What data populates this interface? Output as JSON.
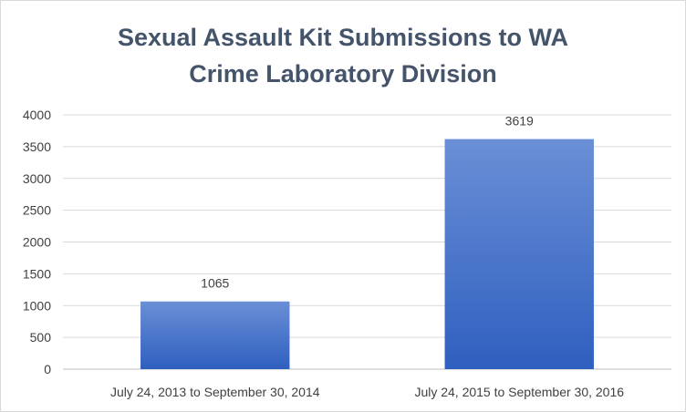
{
  "chart_data": {
    "type": "bar",
    "title_lines": [
      "Sexual Assault Kit Submissions to WA",
      "Crime Laboratory Division"
    ],
    "categories": [
      "July 24, 2013 to September 30, 2014",
      "July 24, 2015 to September 30, 2016"
    ],
    "series": [
      {
        "values": [
          1065,
          3619
        ]
      }
    ],
    "data_labels": [
      "1065",
      "3619"
    ],
    "y_ticks": [
      "0",
      "500",
      "1000",
      "1500",
      "2000",
      "2500",
      "3000",
      "3500",
      "4000"
    ],
    "ylim": [
      0,
      4000
    ],
    "ystep": 500,
    "grid": true,
    "legend": "none",
    "colors": {
      "bar_top": "#6a8fd6",
      "bar_bottom": "#2f5fbf",
      "title": "#44546a"
    }
  }
}
